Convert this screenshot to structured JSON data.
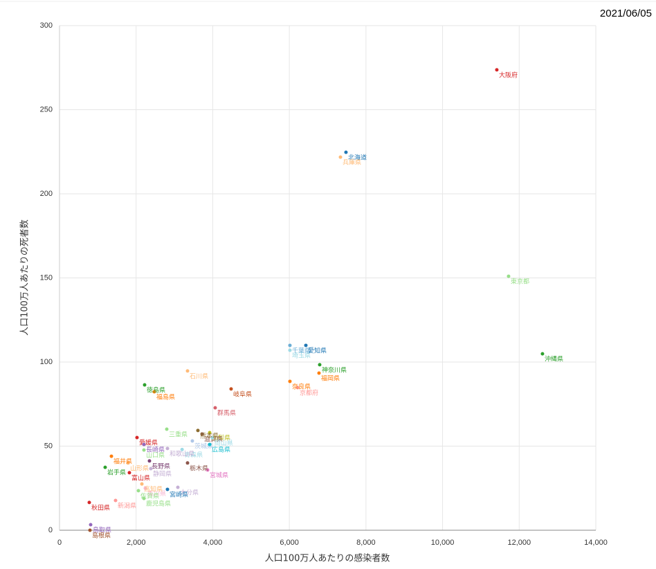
{
  "chart_data": {
    "type": "scatter",
    "date": "2021/06/05",
    "xlabel": "人口100万人あたりの感染者数",
    "ylabel": "人口100万人あたりの死者数",
    "xlim": [
      0,
      14000
    ],
    "ylim": [
      0,
      300
    ],
    "xticks": [
      0,
      {
        "value": 2000,
        "label": "2,000"
      },
      {
        "value": 4000,
        "label": "4,000"
      },
      {
        "value": 6000,
        "label": "6,000"
      },
      {
        "value": 8000,
        "label": "8,000"
      },
      {
        "value": 10000,
        "label": "10,000"
      },
      {
        "value": 12000,
        "label": "12,000"
      },
      {
        "value": 14000,
        "label": "14,000"
      }
    ],
    "yticks": [
      0,
      50,
      100,
      150,
      200,
      250,
      300
    ],
    "grid": true,
    "labels": [
      "北海道",
      "青森県",
      "岩手県",
      "宮城県",
      "秋田県",
      "山形県",
      "福島県",
      "茨城県",
      "栃木県",
      "群馬県",
      "埼玉県",
      "千葉県",
      "東京都",
      "神奈川県",
      "新潟県",
      "富山県",
      "石川県",
      "福井県",
      "山梨県",
      "長野県",
      "岐阜県",
      "静岡県",
      "愛知県",
      "三重県",
      "滋賀県",
      "京都府",
      "大阪府",
      "兵庫県",
      "奈良県",
      "和歌山県",
      "鳥取県",
      "島根県",
      "岡山県",
      "広島県",
      "山口県",
      "徳島県",
      "香川県",
      "愛媛県",
      "高知県",
      "福岡県",
      "佐賀県",
      "長崎県",
      "熊本県",
      "大分県",
      "宮崎県",
      "鹿児島県",
      "沖縄県"
    ],
    "x": [
      7478,
      3200,
      1192,
      3866,
      777,
      1788,
      2475,
      3468,
      3342,
      4064,
      6015,
      6015,
      11723,
      6792,
      1463,
      1824,
      3342,
      1355,
      3920,
      2348,
      4480,
      2384,
      6431,
      2800,
      3721,
      6214,
      11416,
      7334,
      6015,
      2818,
      813,
      795,
      3990,
      3920,
      2204,
      2222,
      2240,
      2023,
      2150,
      6774,
      2060,
      2204,
      3613,
      3089,
      2818,
      2204,
      12608
    ],
    "y": [
      224.7,
      48,
      37.4,
      35.8,
      16.5,
      40,
      82.3,
      53.1,
      40,
      72.8,
      107,
      109.9,
      151,
      98.4,
      17.7,
      34.2,
      94.7,
      44,
      58,
      41.2,
      84,
      36.6,
      109.9,
      60.1,
      57.2,
      84.8,
      273.7,
      221.8,
      88.5,
      48.6,
      3.3,
      0,
      55,
      51,
      47.7,
      86.4,
      25,
      55.1,
      27.5,
      93.4,
      23.5,
      51,
      59.3,
      25.5,
      24.3,
      18.9,
      104.9
    ],
    "colors": [
      "#1f77b4",
      "#9edae5",
      "#2ca02c",
      "#e377c2",
      "#d62728",
      "#ffbb78",
      "#ff7f0e",
      "#aec7e8",
      "#8c564b",
      "#d6616b",
      "#9edae5",
      "#6baed6",
      "#98df8a",
      "#2ca02c",
      "#ff9896",
      "#d62728",
      "#ffbb78",
      "#ff7f0e",
      "#bcbd22",
      "#7b4173",
      "#c5511f",
      "#c5b0d5",
      "#1f77b4",
      "#98df8a",
      "#8c564b",
      "#ff9896",
      "#d62728",
      "#ffbb78",
      "#ff7f0e",
      "#c5b0d5",
      "#9467bd",
      "#a0522d",
      "#9edae5",
      "#17becf",
      "#98df8a",
      "#2ca02c",
      "#f7b6d2",
      "#d62728",
      "#ffbb78",
      "#ff7f0e",
      "#98df8a",
      "#9467bd",
      "#8c6d31",
      "#c5b0d5",
      "#1f77b4",
      "#98df8a",
      "#2ca02c"
    ]
  }
}
